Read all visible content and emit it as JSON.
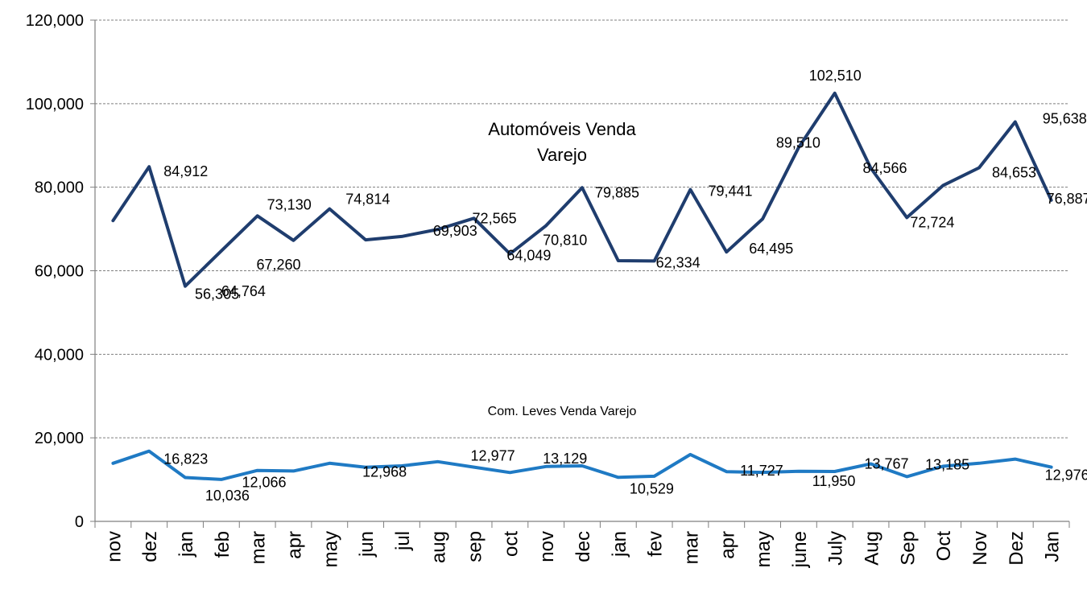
{
  "chart_data": {
    "type": "line",
    "categories": [
      "nov",
      "dez",
      "jan",
      "feb",
      "mar",
      "apr",
      "may",
      "jun",
      "jul",
      "aug",
      "sep",
      "oct",
      "nov",
      "dec",
      "jan",
      "fev",
      "mar",
      "apr",
      "may",
      "june",
      "July",
      "Aug",
      "Sep",
      "Oct",
      "Nov",
      "Dez",
      "Jan"
    ],
    "ylim": [
      0,
      120000
    ],
    "yticks": [
      0,
      20000,
      40000,
      60000,
      80000,
      100000,
      120000
    ],
    "ytick_labels": [
      "0",
      "20,000",
      "40,000",
      "60,000",
      "80,000",
      "100,000",
      "120,000"
    ],
    "grid": true,
    "series": [
      {
        "name": "Automóveis Venda Varejo",
        "name_lines": [
          "Automóveis Venda",
          "Varejo"
        ],
        "color": "#1f3d6e",
        "values": [
          72000,
          84912,
          56305,
          64764,
          73130,
          67260,
          74814,
          67400,
          68200,
          69903,
          72565,
          64049,
          70810,
          79885,
          62400,
          62334,
          79441,
          64495,
          72400,
          89510,
          102510,
          84566,
          72724,
          80400,
          84653,
          95638,
          76887
        ],
        "labels": [
          "",
          "84,912",
          "56,305",
          "64,764",
          "73,130",
          "67,260",
          "74,814",
          "",
          "",
          "69,903",
          "72,565",
          "64,049",
          "70,810",
          "79,885",
          "",
          "62,334",
          "79,441",
          "64,495",
          "",
          "89,510",
          "102,510",
          "84,566",
          "72,724",
          "",
          "84,653",
          "95,638",
          "76,887"
        ]
      },
      {
        "name": "Com. Leves Venda Varejo",
        "color": "#1f7ac4",
        "values": [
          13900,
          16823,
          10500,
          10036,
          12200,
          12066,
          13900,
          12968,
          13300,
          14300,
          12977,
          11700,
          13129,
          13300,
          10529,
          10800,
          16000,
          11900,
          11727,
          12000,
          11950,
          13767,
          10700,
          13185,
          13900,
          14900,
          12976
        ],
        "labels": [
          "",
          "16,823",
          "",
          "10,036",
          "",
          "12,066",
          "",
          "12,968",
          "",
          "",
          "12,977",
          "",
          "13,129",
          "",
          "10,529",
          "",
          "",
          "",
          "11,727",
          "",
          "11,950",
          "13,767",
          "",
          "13,185",
          "",
          "",
          "12,976"
        ]
      }
    ]
  }
}
